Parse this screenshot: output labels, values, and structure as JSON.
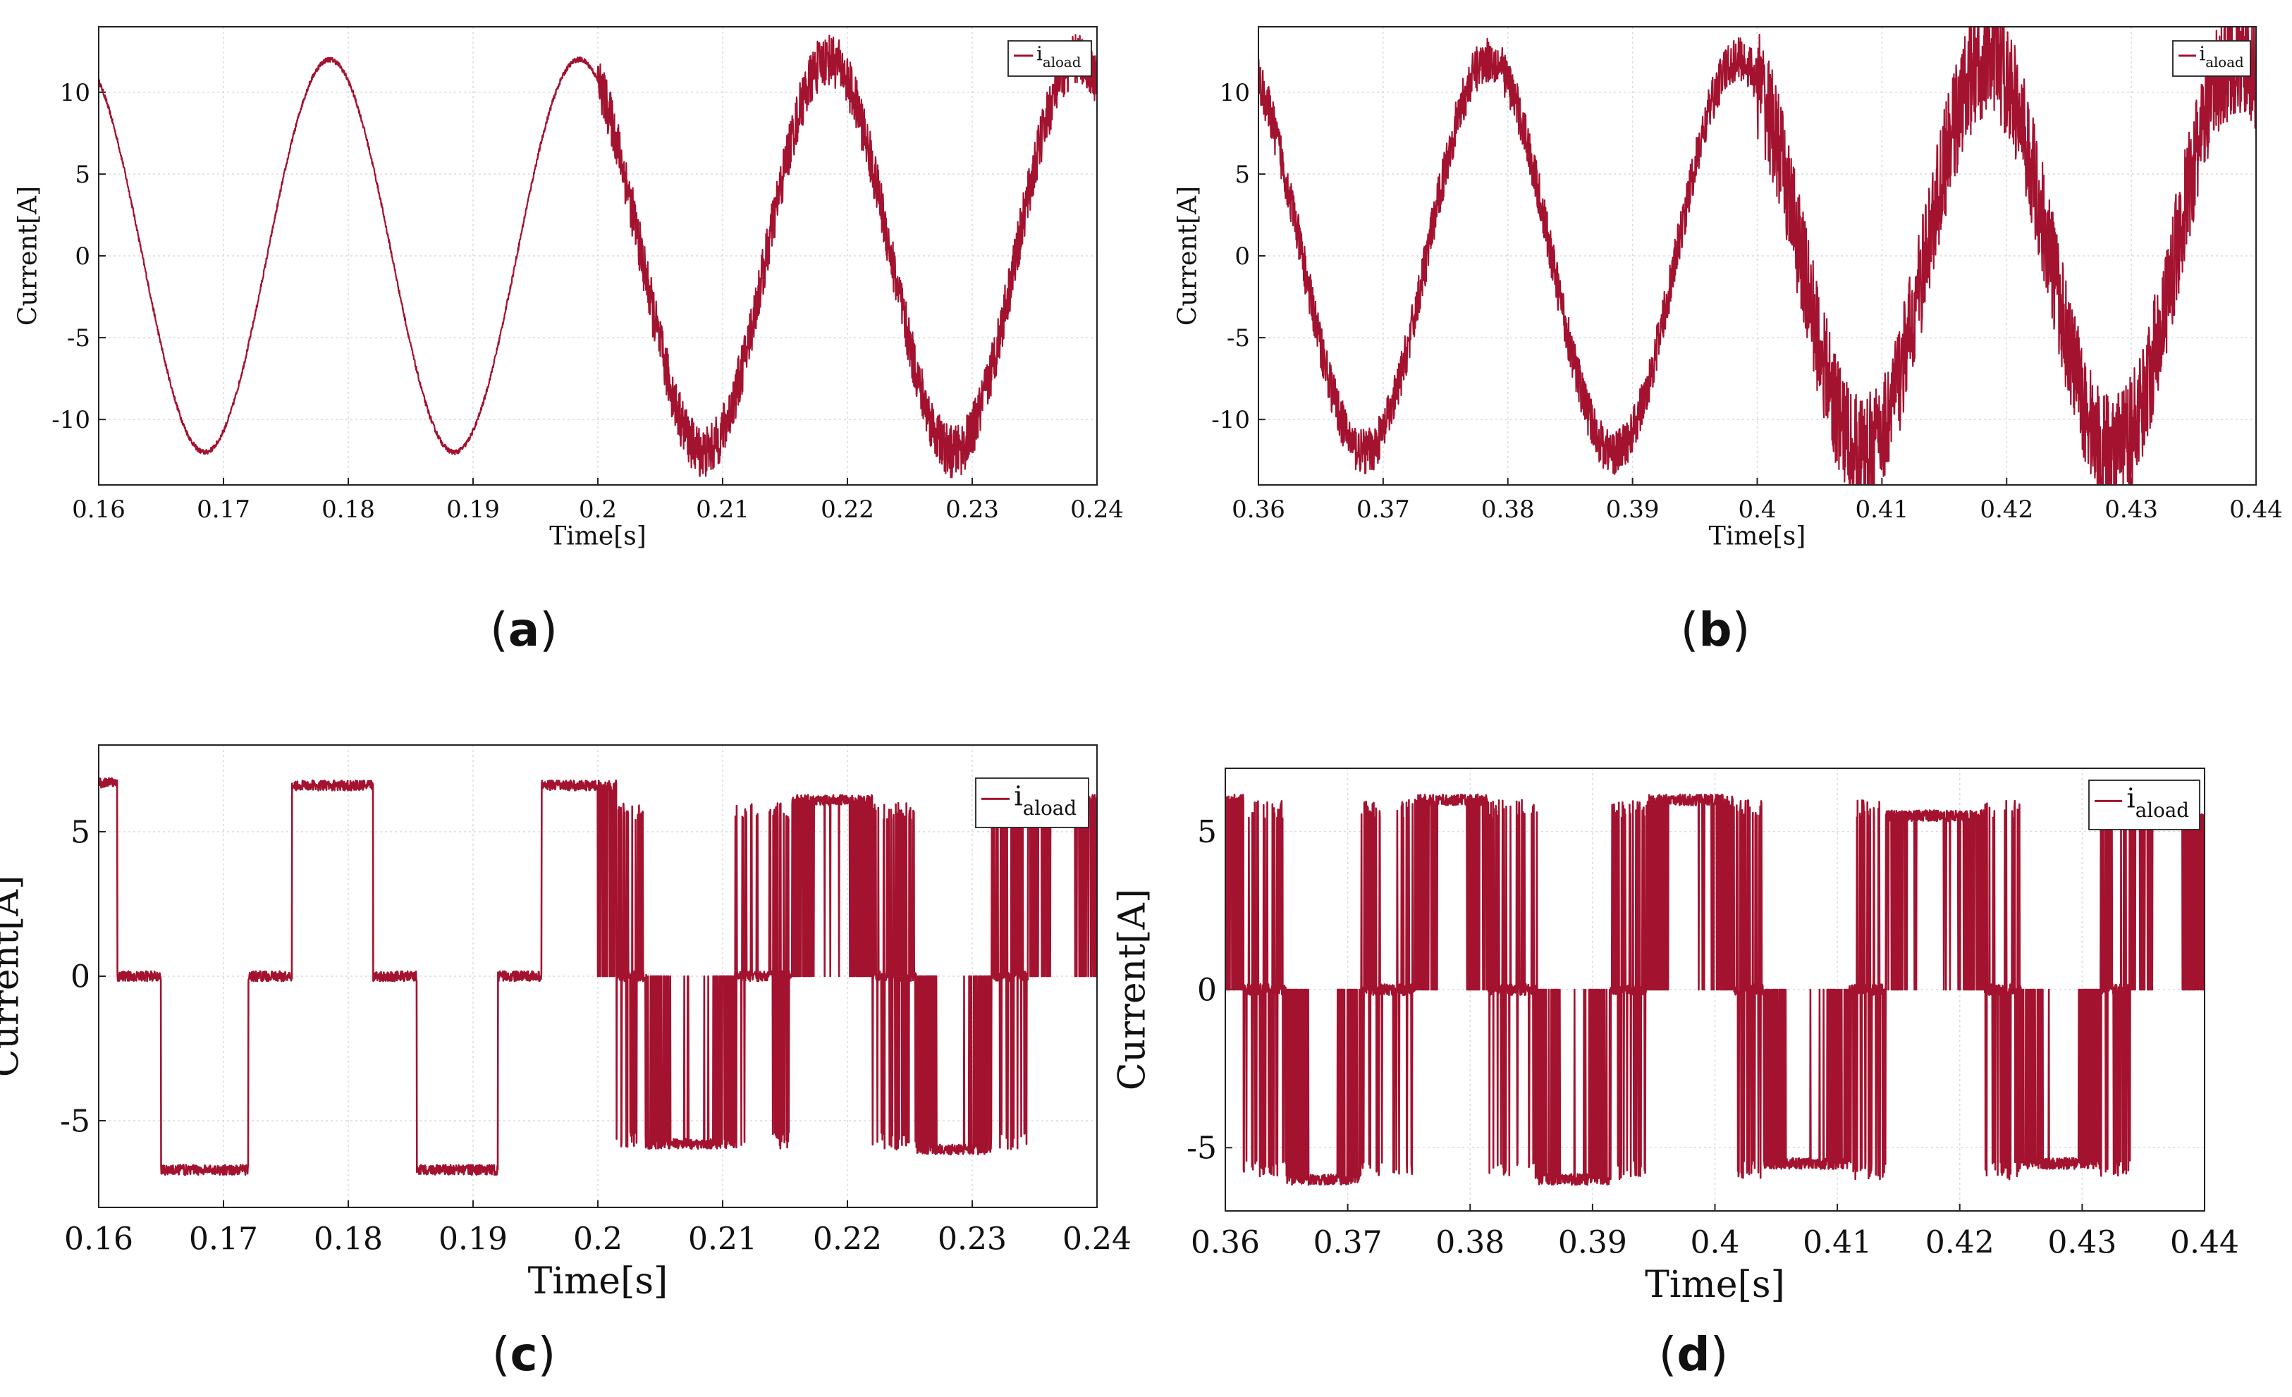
{
  "chart_data": [
    {
      "id": "a",
      "type": "line",
      "caption_letter": "a",
      "xlabel": "Time[s]",
      "ylabel": "Current[A]",
      "xlim": [
        0.16,
        0.24
      ],
      "ylim": [
        -14,
        14
      ],
      "xticks": [
        "0.16",
        "0.17",
        "0.18",
        "0.19",
        "0.2",
        "0.21",
        "0.22",
        "0.23",
        "0.24"
      ],
      "yticks": [
        "-10",
        "-5",
        "0",
        "5",
        "10"
      ],
      "ytick_values": [
        -10,
        -5,
        0,
        5,
        10
      ],
      "grid": true,
      "legend": {
        "position": "top-right",
        "label_main": "i",
        "label_sub": "aload"
      },
      "series": [
        {
          "name": "i_aload",
          "waveform": "sine",
          "amplitude": 12,
          "frequency_hz": 50,
          "phase_peak_time": 0.1785,
          "ripple_segments": [
            {
              "from": 0.16,
              "to": 0.2,
              "ripple": 0.15
            },
            {
              "from": 0.2,
              "to": 0.24,
              "ripple": 1.6
            }
          ]
        }
      ]
    },
    {
      "id": "b",
      "type": "line",
      "caption_letter": "b",
      "xlabel": "Time[s]",
      "ylabel": "Current[A]",
      "xlim": [
        0.36,
        0.44
      ],
      "ylim": [
        -14,
        14
      ],
      "xticks": [
        "0.36",
        "0.37",
        "0.38",
        "0.39",
        "0.4",
        "0.41",
        "0.42",
        "0.43",
        "0.44"
      ],
      "yticks": [
        "-10",
        "-5",
        "0",
        "5",
        "10"
      ],
      "ytick_values": [
        -10,
        -5,
        0,
        5,
        10
      ],
      "grid": true,
      "legend": {
        "position": "top-right",
        "label_main": "i",
        "label_sub": "aload"
      },
      "series": [
        {
          "name": "i_aload",
          "waveform": "sine",
          "amplitude": 12,
          "frequency_hz": 50,
          "phase_peak_time": 0.3785,
          "ripple_segments": [
            {
              "from": 0.36,
              "to": 0.4,
              "ripple": 1.4
            },
            {
              "from": 0.4,
              "to": 0.44,
              "ripple": 3.5
            }
          ]
        }
      ]
    },
    {
      "id": "c",
      "type": "line",
      "caption_letter": "c",
      "xlabel": "Time[s]",
      "ylabel": "Current[A]",
      "xlim": [
        0.16,
        0.24
      ],
      "ylim": [
        -8,
        8
      ],
      "xticks": [
        "0.16",
        "0.17",
        "0.18",
        "0.19",
        "0.2",
        "0.21",
        "0.22",
        "0.23",
        "0.24"
      ],
      "yticks": [
        "-5",
        "0",
        "5"
      ],
      "ytick_values": [
        -5,
        0,
        5
      ],
      "grid": true,
      "legend": {
        "position": "top-right",
        "label_main": "i",
        "label_sub": "aload"
      },
      "series": [
        {
          "name": "i_aload",
          "waveform": "six-step",
          "levels": [
            {
              "from": 0.16,
              "to": 0.1615,
              "value": 6.7
            },
            {
              "from": 0.1615,
              "to": 0.165,
              "value": 0
            },
            {
              "from": 0.165,
              "to": 0.172,
              "value": -6.7
            },
            {
              "from": 0.172,
              "to": 0.1755,
              "value": 0
            },
            {
              "from": 0.1755,
              "to": 0.182,
              "value": 6.6
            },
            {
              "from": 0.182,
              "to": 0.1855,
              "value": 0
            },
            {
              "from": 0.1855,
              "to": 0.192,
              "value": -6.7
            },
            {
              "from": 0.192,
              "to": 0.1955,
              "value": 0
            },
            {
              "from": 0.1955,
              "to": 0.2015,
              "value": 6.6
            },
            {
              "from": 0.2015,
              "to": 0.204,
              "value": 0
            },
            {
              "from": 0.204,
              "to": 0.211,
              "value": -5.8
            },
            {
              "from": 0.211,
              "to": 0.2155,
              "value": 0
            },
            {
              "from": 0.2155,
              "to": 0.222,
              "value": 6.1
            },
            {
              "from": 0.222,
              "to": 0.2255,
              "value": 0
            },
            {
              "from": 0.2255,
              "to": 0.2315,
              "value": -6.0
            },
            {
              "from": 0.2315,
              "to": 0.2345,
              "value": 0
            },
            {
              "from": 0.2345,
              "to": 0.24,
              "value": 6.1
            }
          ],
          "chatter_from": 0.2
        }
      ]
    },
    {
      "id": "d",
      "type": "line",
      "caption_letter": "d",
      "xlabel": "Time[s]",
      "ylabel": "Current[A]",
      "xlim": [
        0.36,
        0.44
      ],
      "ylim": [
        -7,
        7
      ],
      "xticks": [
        "0.36",
        "0.37",
        "0.38",
        "0.39",
        "0.4",
        "0.41",
        "0.42",
        "0.43",
        "0.44"
      ],
      "yticks": [
        "-5",
        "0",
        "5"
      ],
      "ytick_values": [
        -5,
        0,
        5
      ],
      "grid": true,
      "legend": {
        "position": "top-right",
        "label_main": "i",
        "label_sub": "aload"
      },
      "series": [
        {
          "name": "i_aload",
          "waveform": "six-step",
          "levels": [
            {
              "from": 0.36,
              "to": 0.3615,
              "value": 6.0
            },
            {
              "from": 0.3615,
              "to": 0.365,
              "value": 0
            },
            {
              "from": 0.365,
              "to": 0.371,
              "value": -6.0
            },
            {
              "from": 0.371,
              "to": 0.3755,
              "value": 0
            },
            {
              "from": 0.3755,
              "to": 0.3815,
              "value": 6.0
            },
            {
              "from": 0.3815,
              "to": 0.3855,
              "value": 0
            },
            {
              "from": 0.3855,
              "to": 0.3915,
              "value": -6.0
            },
            {
              "from": 0.3915,
              "to": 0.3945,
              "value": 0
            },
            {
              "from": 0.3945,
              "to": 0.4015,
              "value": 6.0
            },
            {
              "from": 0.4015,
              "to": 0.404,
              "value": 0
            },
            {
              "from": 0.404,
              "to": 0.411,
              "value": -5.5
            },
            {
              "from": 0.411,
              "to": 0.414,
              "value": 0
            },
            {
              "from": 0.414,
              "to": 0.422,
              "value": 5.5
            },
            {
              "from": 0.422,
              "to": 0.425,
              "value": 0
            },
            {
              "from": 0.425,
              "to": 0.4315,
              "value": -5.5
            },
            {
              "from": 0.4315,
              "to": 0.434,
              "value": 0
            },
            {
              "from": 0.434,
              "to": 0.44,
              "value": 5.4
            }
          ],
          "chatter_from": 0.36
        }
      ]
    }
  ],
  "colors": {
    "trace": "#a3122f",
    "axis": "#222222",
    "grid": "#dcdcdc",
    "text": "#111111"
  }
}
